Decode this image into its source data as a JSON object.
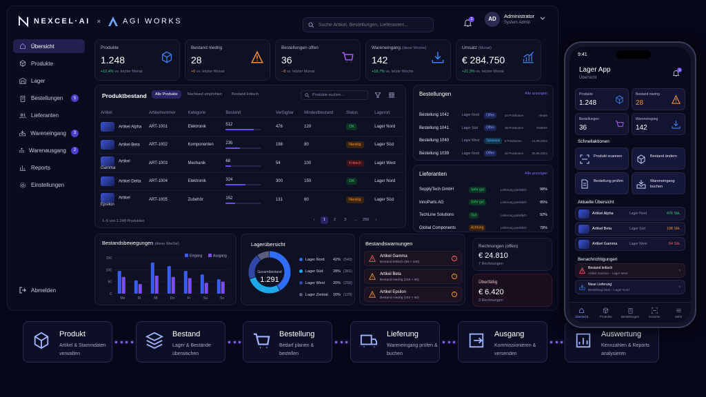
{
  "brand": {
    "name": "NEXCEL·AI",
    "separator": "×",
    "partner": "AGI WORKS"
  },
  "search": {
    "placeholder": "Suche Artikel, Bestellungen, Lieferanten..."
  },
  "notifications": {
    "count": "3"
  },
  "user": {
    "initials": "AD",
    "name": "Administrator",
    "role": "System Admin"
  },
  "sidebar": {
    "items": [
      {
        "label": "Übersicht",
        "icon": "home-icon",
        "active": true,
        "badge": ""
      },
      {
        "label": "Produkte",
        "icon": "cube-icon",
        "badge": ""
      },
      {
        "label": "Lager",
        "icon": "warehouse-icon",
        "badge": ""
      },
      {
        "label": "Bestellungen",
        "icon": "clipboard-icon",
        "badge": "5"
      },
      {
        "label": "Lieferanten",
        "icon": "users-icon",
        "badge": ""
      },
      {
        "label": "Wareneingang",
        "icon": "inbox-icon",
        "badge": "3"
      },
      {
        "label": "Warenausgang",
        "icon": "outbox-icon",
        "badge": "2"
      },
      {
        "label": "Reports",
        "icon": "chart-icon",
        "badge": ""
      },
      {
        "label": "Einstellungen",
        "icon": "gear-icon",
        "badge": ""
      }
    ],
    "logout": "Abmelden"
  },
  "kpis": [
    {
      "title": "Produkte",
      "sub": "",
      "value": "1.248",
      "delta": "+12,4%",
      "delta_text": "vs. letzter Monat",
      "trend": "pos",
      "icon": "cube-icon",
      "color": "#3b82f6"
    },
    {
      "title": "Bestand niedrig",
      "sub": "",
      "value": "28",
      "delta": "+6",
      "delta_text": "vs. letzter Monat",
      "trend": "neg",
      "icon": "warning-icon",
      "color": "#f59232"
    },
    {
      "title": "Bestellungen offen",
      "sub": "",
      "value": "36",
      "delta": "−8",
      "delta_text": "vs. letzter Monat",
      "trend": "neg",
      "icon": "cart-icon",
      "color": "#a855f7"
    },
    {
      "title": "Wareneingang",
      "sub": "(diese Woche)",
      "value": "142",
      "delta": "+18,7%",
      "delta_text": "vs. letzte Woche",
      "trend": "pos",
      "icon": "download-icon",
      "color": "#3b82f6"
    },
    {
      "title": "Umsatz",
      "sub": "(Monat)",
      "value": "€ 284.750",
      "delta": "+21,3%",
      "delta_text": "vs. letzter Monat",
      "trend": "pos",
      "icon": "bar-chart-icon",
      "color": "#3b82f6"
    }
  ],
  "stock": {
    "title": "Produktbestand",
    "filters": [
      "Alle Produkte",
      "Nachkauf empfohlen",
      "Bestand kritisch"
    ],
    "search_placeholder": "Produkte suchen...",
    "columns": [
      "Artikel",
      "Artikelnummer",
      "Kategorie",
      "Bestand",
      "Verfügbar",
      "Mindestbestand",
      "Status",
      "Lagerort"
    ],
    "rows": [
      {
        "name": "Artikel Alpha",
        "sku": "ART-1001",
        "cat": "Elektronik",
        "stock": "512",
        "fill": 0.78,
        "avail": "476",
        "min": "120",
        "status": "OK",
        "cls": "ok",
        "loc": "Lager Nord"
      },
      {
        "name": "Artikel Beta",
        "sku": "ART-1002",
        "cat": "Komponenten",
        "stock": "235",
        "fill": 0.4,
        "avail": "198",
        "min": "80",
        "status": "Niedrig",
        "cls": "low",
        "loc": "Lager Süd"
      },
      {
        "name": "Artikel Gamma",
        "sku": "ART-1003",
        "cat": "Mechanik",
        "stock": "68",
        "fill": 0.14,
        "avail": "54",
        "min": "100",
        "status": "Kritisch",
        "cls": "crit",
        "loc": "Lager West"
      },
      {
        "name": "Artikel Delta",
        "sku": "ART-1004",
        "cat": "Elektronik",
        "stock": "324",
        "fill": 0.55,
        "avail": "300",
        "min": "150",
        "status": "OK",
        "cls": "ok",
        "loc": "Lager Nord"
      },
      {
        "name": "Artikel Epsilon",
        "sku": "ART-1005",
        "cat": "Zubehör",
        "stock": "152",
        "fill": 0.27,
        "avail": "131",
        "min": "60",
        "status": "Niedrig",
        "cls": "low",
        "loc": "Lager Süd"
      }
    ],
    "footer": "1–5 von 1.248 Produkten",
    "pages": [
      "‹",
      "1",
      "2",
      "3",
      "...",
      "250",
      "›"
    ]
  },
  "orders": {
    "title": "Bestellungen",
    "link": "Alle anzeigen",
    "rows": [
      {
        "id": "Bestellung 1042",
        "loc": "Lager Nord",
        "status": "Offen",
        "pos": "24 Positionen",
        "date": "Heute"
      },
      {
        "id": "Bestellung 1041",
        "loc": "Lager Süd",
        "status": "Offen",
        "pos": "15 Positionen",
        "date": "Gestern"
      },
      {
        "id": "Bestellung 1040",
        "loc": "Lager West",
        "status": "Teilweise",
        "pos": "8 Positionen",
        "date": "21.05.2024"
      },
      {
        "id": "Bestellung 1039",
        "loc": "Lager Nord",
        "status": "Offen",
        "pos": "32 Positionen",
        "date": "20.05.2024"
      }
    ]
  },
  "suppliers": {
    "title": "Lieferanten",
    "link": "Alle anzeigen",
    "rows": [
      {
        "name": "SupplyTech GmbH",
        "rating": "Sehr gut",
        "cls": "ok",
        "text": "Lieferung pünktlich",
        "pct": "98%"
      },
      {
        "name": "InnoParts AG",
        "rating": "Sehr gut",
        "cls": "ok",
        "text": "Lieferung pünktlich",
        "pct": "95%"
      },
      {
        "name": "TechLine Solutions",
        "rating": "Gut",
        "cls": "ok",
        "text": "Lieferung pünktlich",
        "pct": "92%"
      },
      {
        "name": "Global Components",
        "rating": "Achtung",
        "cls": "low",
        "text": "Lieferung pünktlich",
        "pct": "78%"
      }
    ]
  },
  "chart_data": {
    "type": "bar",
    "title": "Bestandsbewegungen",
    "subtitle": "(diese Woche)",
    "categories": [
      "Mo",
      "Di",
      "Mi",
      "Do",
      "Fr",
      "Sa",
      "So"
    ],
    "series": [
      {
        "name": "Eingang",
        "color": "#3b5cf0",
        "values": [
          95,
          55,
          130,
          115,
          95,
          80,
          60
        ]
      },
      {
        "name": "Ausgang",
        "color": "#7c4df2",
        "values": [
          70,
          40,
          75,
          70,
          65,
          45,
          50
        ]
      }
    ],
    "yticks": [
      "150",
      "100",
      "50",
      "0"
    ],
    "ylim": [
      0,
      150
    ]
  },
  "storage": {
    "title": "Lagerübersicht",
    "total_label": "Gesamtbestand",
    "total": "1.291",
    "items": [
      {
        "name": "Lager Nord",
        "pct": "42%",
        "val": "(543)",
        "share": 0.42,
        "color": "#2f6df6"
      },
      {
        "name": "Lager Süd",
        "pct": "28%",
        "val": "(361)",
        "share": 0.28,
        "color": "#1fa8e8"
      },
      {
        "name": "Lager West",
        "pct": "20%",
        "val": "(258)",
        "share": 0.2,
        "color": "#3047a8"
      },
      {
        "name": "Lager Zentral",
        "pct": "10%",
        "val": "(129)",
        "share": 0.1,
        "color": "#5a5d7e"
      }
    ]
  },
  "warnings": {
    "title": "Bestandswarnungen",
    "items": [
      {
        "name": "Artikel Gamma",
        "text": "Bestand kritisch (68 < 100)",
        "color": "#ff5d6c"
      },
      {
        "name": "Artikel Beta",
        "text": "Bestand niedrig (235 < 80)",
        "color": "#f59232"
      },
      {
        "name": "Artikel Epsilon",
        "text": "Bestand niedrig (152 < 60)",
        "color": "#f59232"
      }
    ]
  },
  "invoices": {
    "title": "Rechnungen (offen)",
    "value": "€ 24.810",
    "count": "7 Rechnungen",
    "overdue_title": "Überfällig",
    "overdue_value": "€ 6.420",
    "overdue_count": "3 Rechnungen"
  },
  "pipeline": [
    {
      "title": "Produkt",
      "sub": "Artikel & Stammdaten verwalten",
      "icon": "cube-icon"
    },
    {
      "title": "Bestand",
      "sub": "Lager & Bestände überwachen",
      "icon": "layers-icon"
    },
    {
      "title": "Bestellung",
      "sub": "Bedarf planen & bestellen",
      "icon": "cart-icon"
    },
    {
      "title": "Lieferung",
      "sub": "Wareneingang prüfen & buchen",
      "icon": "truck-icon"
    },
    {
      "title": "Ausgang",
      "sub": "Kommissionieren & versenden",
      "icon": "exit-icon"
    },
    {
      "title": "Auswertung",
      "sub": "Kennzahlen & Reports analysieren",
      "icon": "report-icon"
    }
  ],
  "phone": {
    "time": "9:41",
    "title": "Lager App",
    "subtitle": "Übersicht",
    "notif": "3",
    "kpis": [
      {
        "title": "Produkte",
        "value": "1.248",
        "icon": "cube-icon",
        "color": "#3b82f6"
      },
      {
        "title": "Bestand niedrig",
        "value": "28",
        "icon": "warning-icon",
        "color": "#f59232"
      },
      {
        "title": "Bestellungen",
        "value": "36",
        "icon": "cart-icon",
        "color": "#a855f7"
      },
      {
        "title": "Wareneingang",
        "value": "142",
        "icon": "download-icon",
        "color": "#3b82f6"
      }
    ],
    "quick_title": "Schnellaktionen",
    "quick": [
      {
        "label": "Produkt scannen",
        "icon": "scan-icon"
      },
      {
        "label": "Bestand ändern",
        "icon": "box-icon"
      },
      {
        "label": "Bestellung prüfen",
        "icon": "doc-icon"
      },
      {
        "label": "Wareneingang buchen",
        "icon": "inbox-icon"
      }
    ],
    "current_title": "Aktuelle Übersicht",
    "current": [
      {
        "name": "Artikel Alpha",
        "loc": "Lager Nord",
        "qty": "476 Stk.",
        "color": "#35d07f"
      },
      {
        "name": "Artikel Beta",
        "loc": "Lager Süd",
        "qty": "198 Stk.",
        "color": "#f59232"
      },
      {
        "name": "Artikel Gamma",
        "loc": "Lager West",
        "qty": "54 Stk.",
        "color": "#ff5d6c"
      }
    ],
    "notify_title": "Benachrichtigungen",
    "notify": [
      {
        "title": "Bestand kritisch",
        "text": "Artikel Gamma – Lager West",
        "color": "#ff5d6c"
      },
      {
        "title": "Neue Lieferung",
        "text": "Bestellung 1042 – Lager Nord",
        "color": "#3b82f6"
      }
    ],
    "tabs": [
      "Übersicht",
      "Produkte",
      "Bestellungen",
      "Scanner",
      "Mehr"
    ]
  }
}
